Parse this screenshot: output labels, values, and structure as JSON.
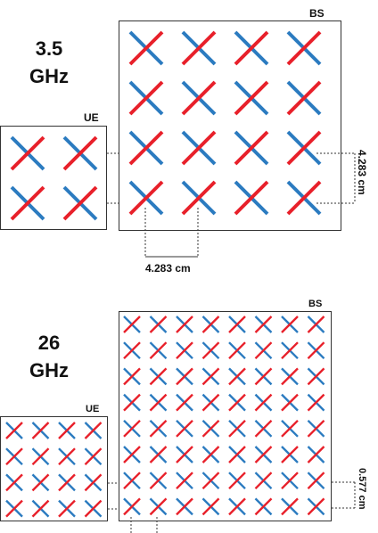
{
  "top": {
    "frequency_line1": "3.5",
    "frequency_line2": "GHz",
    "bs_label": "BS",
    "ue_label": "UE",
    "spacing_horizontal": "4.283 cm",
    "spacing_vertical": "4.283 cm",
    "bs_grid": {
      "rows": 4,
      "cols": 4
    },
    "ue_grid": {
      "rows": 2,
      "cols": 2
    }
  },
  "bottom": {
    "frequency_line1": "26",
    "frequency_line2": "GHz",
    "bs_label": "BS",
    "ue_label": "UE",
    "spacing_vertical": "0.577 cm",
    "bs_grid": {
      "rows": 8,
      "cols": 8
    },
    "ue_grid": {
      "rows": 4,
      "cols": 4
    }
  },
  "colors": {
    "red_element": "#e8202a",
    "blue_element": "#2b7bc0"
  }
}
